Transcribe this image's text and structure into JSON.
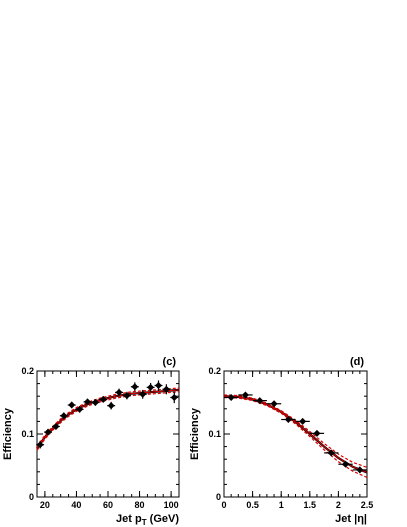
{
  "chart_data": [
    {
      "type": "scatter",
      "panel_label": "(c)",
      "xlabel": "Jet p",
      "xlabel_sub": "T",
      "xlabel_unit": " (GeV)",
      "ylabel": "Efficiency",
      "xlim": [
        15,
        105
      ],
      "ylim": [
        0,
        0.2
      ],
      "x_ticks": [
        20,
        40,
        60,
        80,
        100
      ],
      "y_ticks": [
        0,
        0.1,
        0.2
      ],
      "x_tick_labels": [
        "20",
        "40",
        "60",
        "80",
        "100"
      ],
      "y_tick_labels": [
        "0",
        "0.1",
        "0.2"
      ],
      "grid": false,
      "series": [
        {
          "kind": "points",
          "x": [
            17,
            22,
            27,
            32,
            37,
            42,
            47,
            52,
            57,
            62,
            67,
            72,
            77,
            82,
            87,
            92,
            97,
            102
          ],
          "y": [
            0.083,
            0.103,
            0.112,
            0.129,
            0.146,
            0.139,
            0.151,
            0.15,
            0.155,
            0.145,
            0.166,
            0.161,
            0.175,
            0.163,
            0.174,
            0.177,
            0.171,
            0.158
          ],
          "yerr": [
            0.006,
            0.005,
            0.005,
            0.005,
            0.005,
            0.005,
            0.005,
            0.005,
            0.005,
            0.006,
            0.006,
            0.006,
            0.007,
            0.007,
            0.007,
            0.008,
            0.008,
            0.009
          ],
          "xerr": 2.5,
          "color": "#000000"
        },
        {
          "kind": "fit",
          "x": [
            15,
            20,
            25,
            30,
            35,
            40,
            45,
            50,
            55,
            60,
            65,
            70,
            75,
            80,
            85,
            90,
            95,
            100,
            105
          ],
          "y": [
            0.077,
            0.095,
            0.109,
            0.121,
            0.131,
            0.139,
            0.145,
            0.15,
            0.154,
            0.157,
            0.16,
            0.162,
            0.164,
            0.165,
            0.166,
            0.167,
            0.168,
            0.169,
            0.17
          ],
          "color": "#000000"
        },
        {
          "kind": "band_upper",
          "x": [
            15,
            20,
            25,
            30,
            35,
            40,
            45,
            50,
            55,
            60,
            65,
            70,
            75,
            80,
            85,
            90,
            95,
            100,
            105
          ],
          "y": [
            0.08,
            0.098,
            0.112,
            0.124,
            0.134,
            0.142,
            0.148,
            0.153,
            0.157,
            0.16,
            0.163,
            0.165,
            0.167,
            0.168,
            0.169,
            0.17,
            0.171,
            0.172,
            0.173
          ],
          "color": "#dd0000"
        },
        {
          "kind": "band_lower",
          "x": [
            15,
            20,
            25,
            30,
            35,
            40,
            45,
            50,
            55,
            60,
            65,
            70,
            75,
            80,
            85,
            90,
            95,
            100,
            105
          ],
          "y": [
            0.074,
            0.092,
            0.106,
            0.118,
            0.128,
            0.136,
            0.142,
            0.147,
            0.151,
            0.154,
            0.157,
            0.159,
            0.161,
            0.162,
            0.163,
            0.164,
            0.165,
            0.166,
            0.167
          ],
          "color": "#dd0000"
        }
      ]
    },
    {
      "type": "scatter",
      "panel_label": "(d)",
      "xlabel": "Jet |η|",
      "xlabel_sub": "",
      "xlabel_unit": "",
      "ylabel": "Efficiency",
      "xlim": [
        0,
        2.5
      ],
      "ylim": [
        0,
        0.2
      ],
      "x_ticks": [
        0,
        0.5,
        1,
        1.5,
        2,
        2.5
      ],
      "y_ticks": [
        0,
        0.1,
        0.2
      ],
      "x_tick_labels": [
        "0",
        "0.5",
        "1",
        "1.5",
        "2",
        "2.5"
      ],
      "y_tick_labels": [
        "0",
        "0.1",
        "0.2"
      ],
      "grid": false,
      "series": [
        {
          "kind": "points",
          "x": [
            0.125,
            0.375,
            0.625,
            0.875,
            1.125,
            1.375,
            1.625,
            1.875,
            2.125,
            2.375
          ],
          "y": [
            0.158,
            0.162,
            0.153,
            0.148,
            0.123,
            0.12,
            0.101,
            0.07,
            0.052,
            0.043
          ],
          "yerr": [
            0.004,
            0.004,
            0.004,
            0.004,
            0.004,
            0.004,
            0.004,
            0.004,
            0.004,
            0.005
          ],
          "xerr": 0.125,
          "color": "#000000"
        },
        {
          "kind": "fit",
          "x": [
            0,
            0.25,
            0.5,
            0.75,
            1.0,
            1.25,
            1.5,
            1.75,
            2.0,
            2.25,
            2.5
          ],
          "y": [
            0.16,
            0.159,
            0.155,
            0.147,
            0.135,
            0.119,
            0.1,
            0.08,
            0.062,
            0.048,
            0.039
          ],
          "color": "#000000"
        },
        {
          "kind": "band_upper",
          "x": [
            0,
            0.25,
            0.5,
            0.75,
            1.0,
            1.25,
            1.5,
            1.75,
            2.0,
            2.25,
            2.5
          ],
          "y": [
            0.162,
            0.161,
            0.157,
            0.149,
            0.137,
            0.122,
            0.104,
            0.085,
            0.068,
            0.055,
            0.047
          ],
          "color": "#dd0000"
        },
        {
          "kind": "band_lower",
          "x": [
            0,
            0.25,
            0.5,
            0.75,
            1.0,
            1.25,
            1.5,
            1.75,
            2.0,
            2.25,
            2.5
          ],
          "y": [
            0.158,
            0.157,
            0.153,
            0.145,
            0.133,
            0.116,
            0.096,
            0.075,
            0.056,
            0.041,
            0.031
          ],
          "color": "#dd0000"
        }
      ]
    }
  ]
}
